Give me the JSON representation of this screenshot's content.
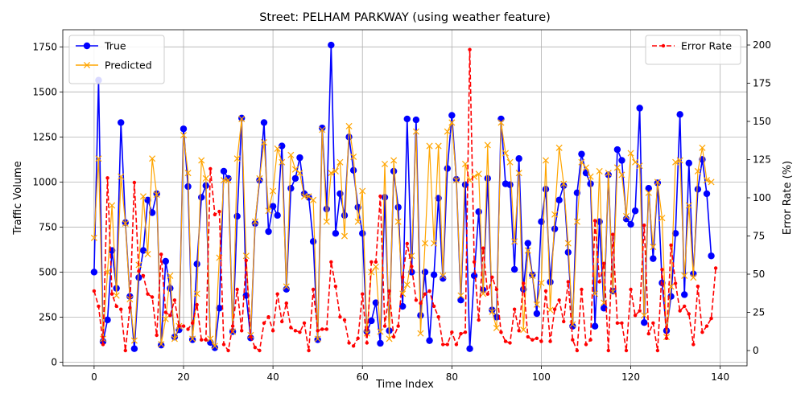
{
  "chart_data": {
    "type": "line",
    "title": "Street: PELHAM PARKWAY (using weather feature)",
    "xlabel": "Time Index",
    "ylabel_left": "Traffic Volume",
    "ylabel_right": "Error Rate (%)",
    "xlim": [
      -7,
      146
    ],
    "ylim_left": [
      -20,
      1845
    ],
    "ylim_right": [
      -10,
      210
    ],
    "xticks": [
      0,
      20,
      40,
      60,
      80,
      100,
      120,
      140
    ],
    "yticks_left": [
      0,
      250,
      500,
      750,
      1000,
      1250,
      1500,
      1750
    ],
    "yticks_right": [
      0,
      25,
      50,
      75,
      100,
      125,
      150,
      175,
      200
    ],
    "grid": true,
    "legend_left": "top-left",
    "legend_right": "top-right",
    "colors": {
      "true": "#0000ff",
      "predicted": "#ffa500",
      "error": "#ff0000"
    },
    "series": [
      {
        "name": "True",
        "axis": "left",
        "style": "solid-circle",
        "values": [
          500,
          1565,
          115,
          235,
          620,
          410,
          1330,
          775,
          365,
          75,
          470,
          620,
          900,
          830,
          935,
          95,
          560,
          410,
          140,
          180,
          1295,
          975,
          125,
          545,
          915,
          980,
          110,
          80,
          300,
          1060,
          1020,
          170,
          810,
          1355,
          370,
          135,
          770,
          1010,
          1330,
          725,
          865,
          815,
          1200,
          405,
          965,
          1020,
          1135,
          935,
          915,
          670,
          125,
          1300,
          850,
          1760,
          715,
          935,
          815,
          1250,
          1065,
          860,
          715,
          170,
          230,
          330,
          105,
          915,
          175,
          1060,
          860,
          310,
          1350,
          500,
          1345,
          260,
          500,
          120,
          485,
          910,
          465,
          1075,
          1370,
          1015,
          345,
          985,
          75,
          480,
          835,
          400,
          1020,
          290,
          250,
          1350,
          990,
          985,
          515,
          1130,
          405,
          660,
          485,
          270,
          780,
          960,
          445,
          740,
          900,
          980,
          610,
          200,
          940,
          1155,
          1050,
          990,
          200,
          780,
          300,
          1040,
          395,
          1180,
          1120,
          795,
          765,
          840,
          1410,
          220,
          965,
          575,
          995,
          440,
          175,
          365,
          715,
          1375,
          375,
          1105,
          490,
          960,
          1125,
          935,
          590
        ]
      },
      {
        "name": "Predicted",
        "axis": "left",
        "style": "solid-x",
        "values": [
          690,
          1130,
          130,
          500,
          870,
          370,
          1030,
          770,
          350,
          120,
          540,
          920,
          600,
          1130,
          930,
          100,
          240,
          480,
          130,
          200,
          1260,
          1050,
          130,
          380,
          1120,
          1020,
          130,
          90,
          580,
          1010,
          1010,
          170,
          1130,
          1350,
          590,
          150,
          780,
          1020,
          1220,
          840,
          950,
          1185,
          1110,
          420,
          1150,
          1070,
          1050,
          920,
          920,
          900,
          130,
          1290,
          780,
          1050,
          1060,
          1110,
          700,
          1310,
          1140,
          780,
          950,
          160,
          500,
          530,
          170,
          1100,
          130,
          1120,
          780,
          380,
          430,
          590,
          1280,
          160,
          660,
          1200,
          660,
          1200,
          480,
          1280,
          1330,
          1010,
          370,
          1100,
          1010,
          1030,
          1045,
          380,
          1205,
          280,
          190,
          1330,
          1160,
          1110,
          670,
          1050,
          180,
          620,
          480,
          320,
          440,
          1120,
          290,
          820,
          1190,
          990,
          660,
          210,
          780,
          1110,
          1080,
          1030,
          380,
          1060,
          330,
          1050,
          390,
          1080,
          1040,
          810,
          1160,
          1110,
          1090,
          260,
          940,
          640,
          1000,
          800,
          140,
          420,
          1110,
          1120,
          480,
          870,
          470,
          1060,
          1190,
          1010,
          1000
        ]
      },
      {
        "name": "Error Rate",
        "axis": "right",
        "style": "dashed-dot",
        "values": [
          39,
          29,
          4,
          113,
          37,
          29,
          27,
          0,
          28,
          110,
          52,
          49,
          37,
          35,
          10,
          63,
          25,
          23,
          33,
          16,
          16,
          14,
          18,
          30,
          7,
          7,
          119,
          89,
          91,
          4,
          0,
          16,
          40,
          13,
          59,
          9,
          2,
          0,
          18,
          22,
          13,
          37,
          19,
          31,
          15,
          13,
          12,
          18,
          0,
          40,
          13,
          14,
          14,
          58,
          42,
          22,
          20,
          5,
          3,
          8,
          37,
          5,
          58,
          58,
          101,
          16,
          39,
          9,
          16,
          48,
          70,
          55,
          33,
          31,
          37,
          39,
          29,
          22,
          4,
          4,
          12,
          4,
          11,
          12,
          197,
          58,
          20,
          67,
          37,
          48,
          40,
          12,
          6,
          5,
          27,
          13,
          44,
          9,
          7,
          8,
          6,
          39,
          6,
          27,
          33,
          19,
          45,
          7,
          0,
          40,
          4,
          7,
          85,
          45,
          57,
          0,
          76,
          18,
          18,
          0,
          40,
          23,
          26,
          82,
          11,
          18,
          0,
          53,
          8,
          69,
          44,
          26,
          29,
          24,
          4,
          42,
          12,
          16,
          21,
          54
        ]
      }
    ]
  }
}
